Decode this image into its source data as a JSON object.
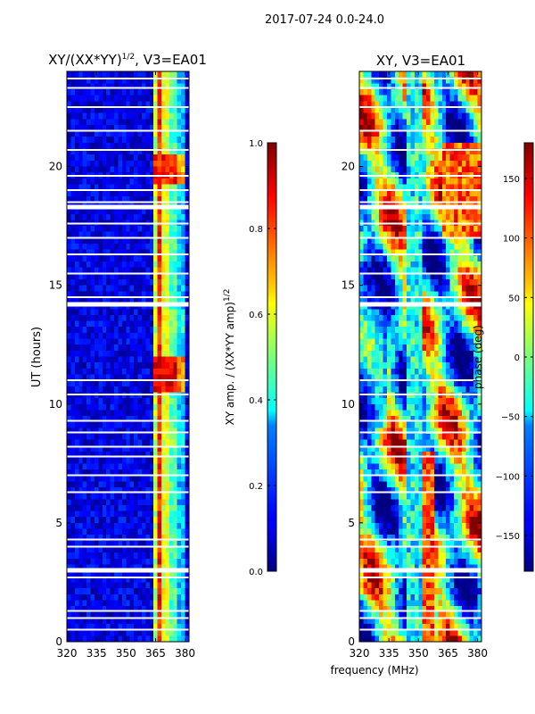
{
  "suptitle": "2017-07-24 0.0-24.0",
  "shared_xlabel": "frequency (MHz)",
  "chart_data": [
    {
      "type": "heatmap",
      "title_main": "XY/(XX*YY)",
      "title_exp": "1/2",
      "title_tail": ", V3=EA01",
      "xlabel": "",
      "ylabel": "UT (hours)",
      "xlim": [
        320,
        382
      ],
      "ylim": [
        0,
        24
      ],
      "xticks": [
        320,
        335,
        350,
        365,
        380
      ],
      "yticks": [
        0,
        5,
        10,
        15,
        20
      ],
      "colorbar": {
        "label_main": "XY amp. / (XX*YY amp)",
        "label_exp": "1/2",
        "vmin": 0.0,
        "vmax": 1.0,
        "ticks": [
          0.0,
          0.2,
          0.4,
          0.6,
          0.8,
          1.0
        ],
        "tick_labels": [
          "0.0",
          "0.2",
          "0.4",
          "0.6",
          "0.8",
          "1.0"
        ]
      },
      "description_bands_mhz": [
        [
          358,
          364,
          0.1
        ],
        [
          364,
          367,
          0.55
        ],
        [
          367,
          369,
          0.85
        ],
        [
          369,
          372,
          0.6
        ],
        [
          372,
          376,
          0.45
        ],
        [
          376,
          380,
          0.3
        ],
        [
          380,
          382,
          0.1
        ]
      ],
      "hot_time_windows_hours": [
        [
          10.5,
          12.0,
          0.9
        ],
        [
          19.3,
          20.5,
          0.85
        ],
        [
          8.3,
          9.0,
          0.55
        ],
        [
          13.0,
          14.0,
          0.55
        ]
      ],
      "flagged_hours": [
        0.5,
        1.0,
        1.3,
        2.7,
        3.0,
        4.0,
        4.3,
        6.3,
        7.0,
        7.8,
        8.2,
        8.8,
        9.3,
        10.4,
        11.0,
        14.2,
        14.5,
        15.5,
        16.3,
        17.0,
        17.6,
        18.3,
        18.5,
        19.0,
        19.6,
        20.7,
        21.5,
        22.5,
        23.3,
        23.7
      ]
    },
    {
      "type": "heatmap",
      "title_main": "XY, V3=EA01",
      "xlabel": "frequency (MHz)",
      "ylabel": "",
      "xlim": [
        320,
        382
      ],
      "ylim": [
        0,
        24
      ],
      "xticks": [
        320,
        335,
        350,
        365,
        380
      ],
      "yticks": [
        0,
        5,
        10,
        15,
        20
      ],
      "colorbar": {
        "label": "phase (deg)",
        "vmin": -180,
        "vmax": 180,
        "ticks": [
          -150,
          -100,
          -50,
          0,
          50,
          100,
          150
        ],
        "tick_labels": [
          "−150",
          "−100",
          "−50",
          "0",
          "50",
          "100",
          "150"
        ]
      },
      "flagged_hours": [
        0.5,
        1.0,
        1.3,
        2.7,
        3.0,
        4.0,
        4.3,
        6.3,
        7.0,
        7.8,
        8.2,
        8.8,
        9.3,
        10.4,
        11.0,
        14.2,
        14.5,
        15.5,
        16.3,
        17.0,
        17.6,
        18.3,
        18.5,
        19.0,
        19.6,
        20.7,
        21.5,
        22.5,
        23.3,
        23.7
      ]
    }
  ]
}
